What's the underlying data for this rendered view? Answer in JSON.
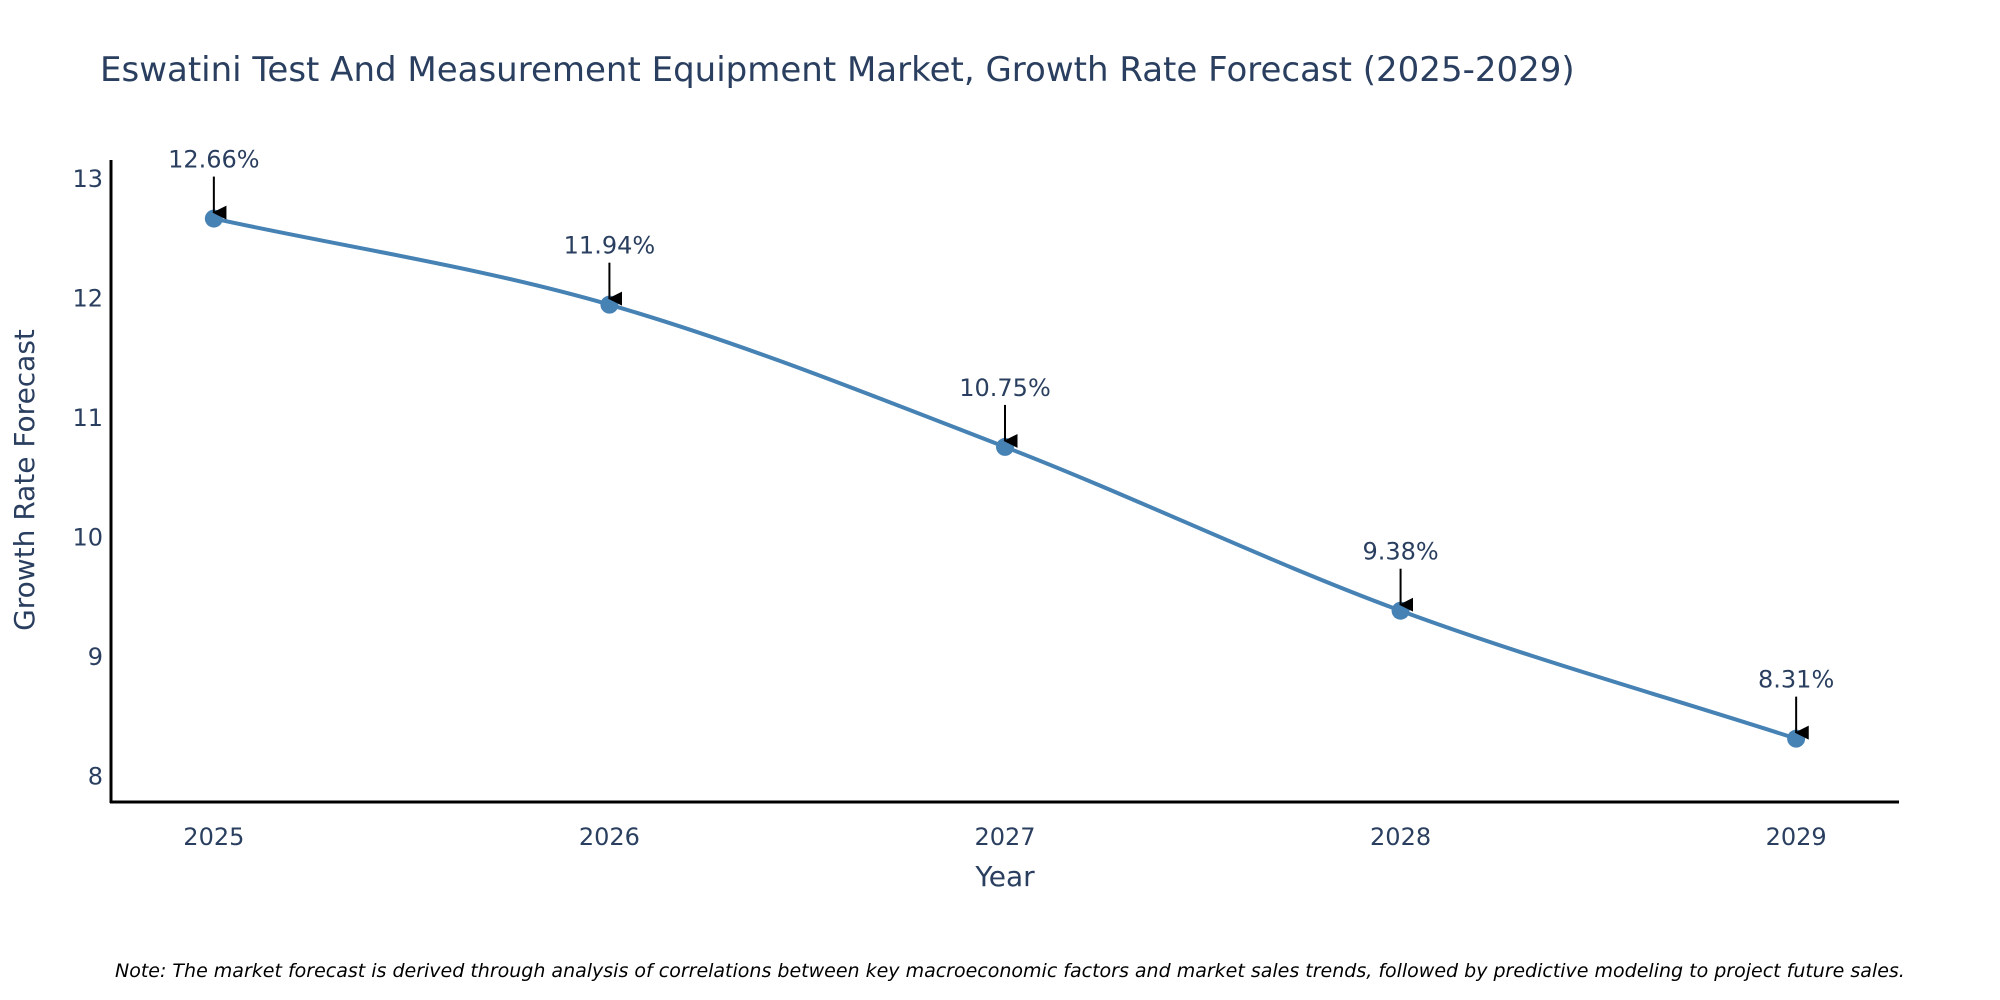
{
  "colors": {
    "line": "#4682b4",
    "marker": "#4682b4",
    "axis": "#000000",
    "text": "#2a3f5f",
    "arrow": "#000000"
  },
  "chart_data": {
    "type": "line",
    "title": "Eswatini Test And Measurement Equipment Market, Growth Rate Forecast (2025-2029)",
    "xlabel": "Year",
    "ylabel": "Growth Rate Forecast",
    "categories": [
      "2025",
      "2026",
      "2027",
      "2028",
      "2029"
    ],
    "x": [
      2025,
      2026,
      2027,
      2028,
      2029
    ],
    "values": [
      12.66,
      11.94,
      10.75,
      9.38,
      8.31
    ],
    "data_labels": [
      "12.66%",
      "11.94%",
      "10.75%",
      "9.38%",
      "8.31%"
    ],
    "yticks": [
      8,
      9,
      10,
      11,
      12,
      13
    ],
    "ylim": [
      7.78,
      13.15
    ],
    "xlim": [
      2024.74,
      2029.26
    ],
    "grid": false,
    "note": "Note: The market forecast is derived through analysis of correlations between key macroeconomic factors and market sales trends, followed by predictive modeling to project future sales."
  }
}
